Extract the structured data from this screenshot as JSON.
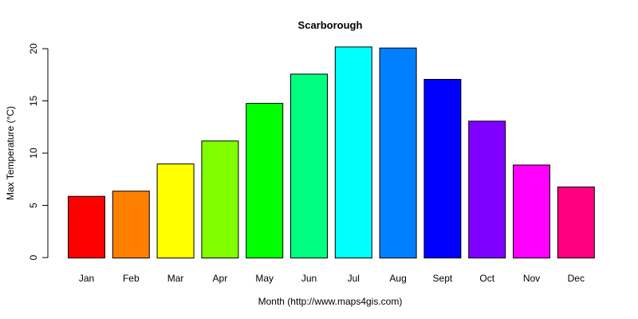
{
  "chart_data": {
    "type": "bar",
    "title": "Scarborough",
    "xlabel": "Month (http://www.maps4gis.com)",
    "ylabel": "Max Temperature (°C)",
    "categories": [
      "Jan",
      "Feb",
      "Mar",
      "Apr",
      "May",
      "Jun",
      "Jul",
      "Aug",
      "Sept",
      "Oct",
      "Nov",
      "Dec"
    ],
    "values": [
      5.9,
      6.4,
      9.0,
      11.2,
      14.8,
      17.6,
      20.2,
      20.1,
      17.1,
      13.1,
      8.9,
      6.8
    ],
    "colors": [
      "#FF0000",
      "#FF8000",
      "#FFFF00",
      "#80FF00",
      "#00FF00",
      "#00FF80",
      "#00FFFF",
      "#0080FF",
      "#0000FF",
      "#8000FF",
      "#FF00FF",
      "#FF0080"
    ],
    "ylim": [
      0,
      20
    ],
    "yticks": [
      0,
      5,
      10,
      15,
      20
    ],
    "grid": false,
    "legend": null
  }
}
